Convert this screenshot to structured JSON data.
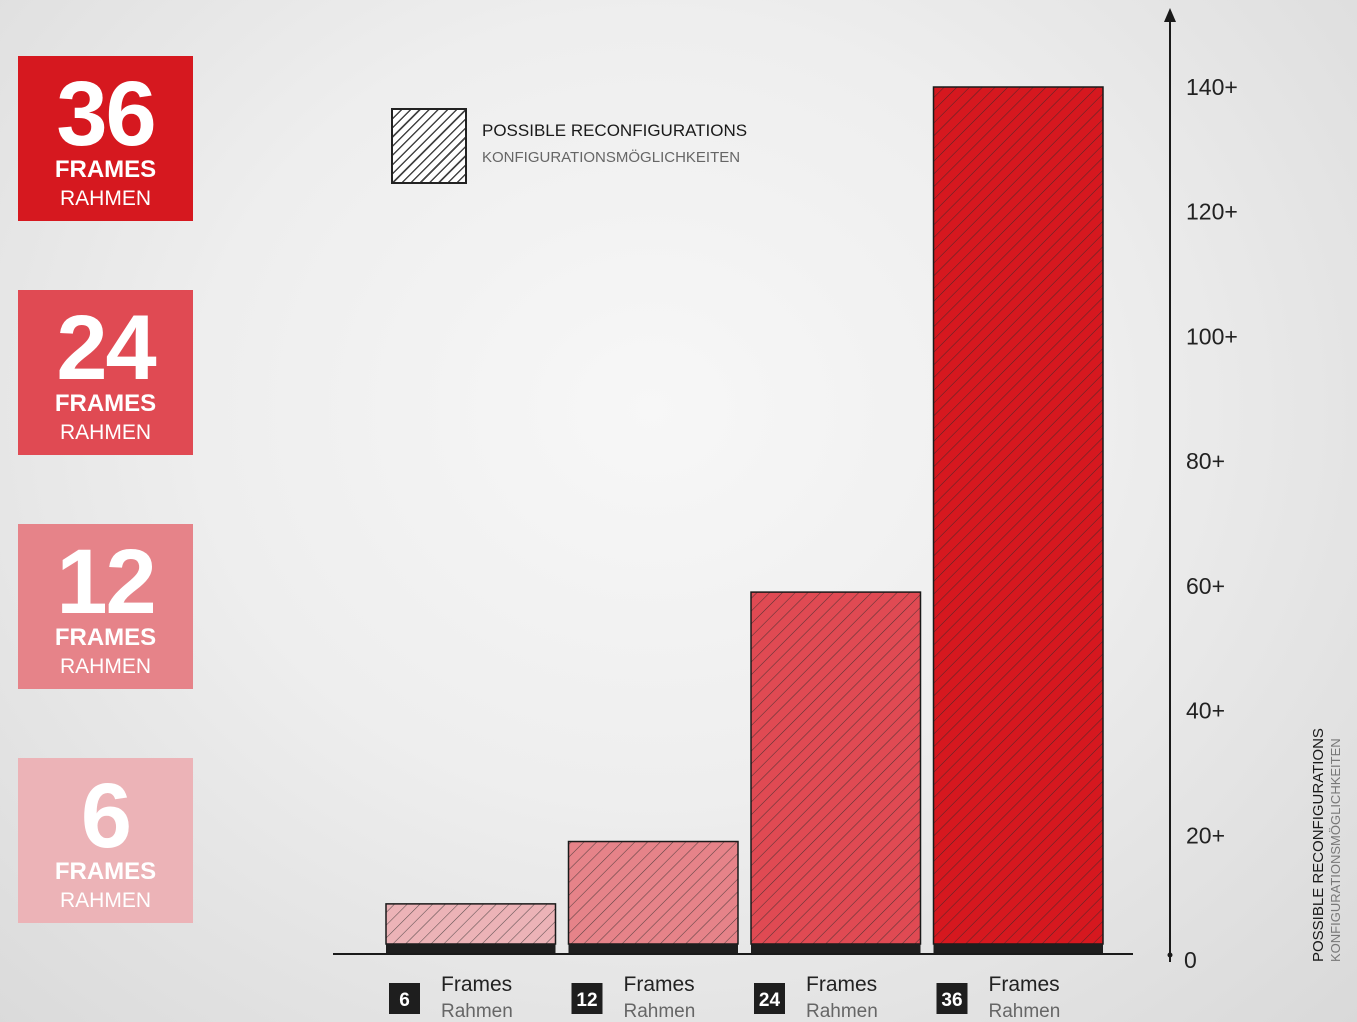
{
  "tiles": [
    {
      "number": "36",
      "frames": "FRAMES",
      "rahmen": "RAHMEN",
      "color": "#d6181f"
    },
    {
      "number": "24",
      "frames": "FRAMES",
      "rahmen": "RAHMEN",
      "color": "#e04a53"
    },
    {
      "number": "12",
      "frames": "FRAMES",
      "rahmen": "RAHMEN",
      "color": "#e68389"
    },
    {
      "number": "6",
      "frames": "FRAMES",
      "rahmen": "RAHMEN",
      "color": "#ecb3b7"
    }
  ],
  "legend": {
    "title": "POSSIBLE RECONFIGURATIONS",
    "subtitle": "KONFIGURATIONSMÖGLICHKEITEN"
  },
  "side_label": {
    "title": "POSSIBLE RECONFIGURATIONS",
    "subtitle": "KONFIGURATIONSMÖGLICHKEITEN"
  },
  "chart_data": {
    "type": "bar",
    "categories": [
      "6",
      "12",
      "24",
      "36"
    ],
    "category_word": "Frames",
    "category_subword": "Rahmen",
    "values": [
      9,
      19,
      59,
      140
    ],
    "colors": [
      "#ecb3b7",
      "#e68389",
      "#e04a53",
      "#d6181f"
    ],
    "ylim": [
      0,
      150
    ],
    "yticks": [
      {
        "value": 0,
        "label": "0"
      },
      {
        "value": 20,
        "label": "20+"
      },
      {
        "value": 40,
        "label": "40+"
      },
      {
        "value": 60,
        "label": "60+"
      },
      {
        "value": 80,
        "label": "80+"
      },
      {
        "value": 100,
        "label": "100+"
      },
      {
        "value": 120,
        "label": "120+"
      },
      {
        "value": 140,
        "label": "140+"
      }
    ],
    "axis_position": "right",
    "pattern": "diagonal hatch",
    "grid": false
  }
}
